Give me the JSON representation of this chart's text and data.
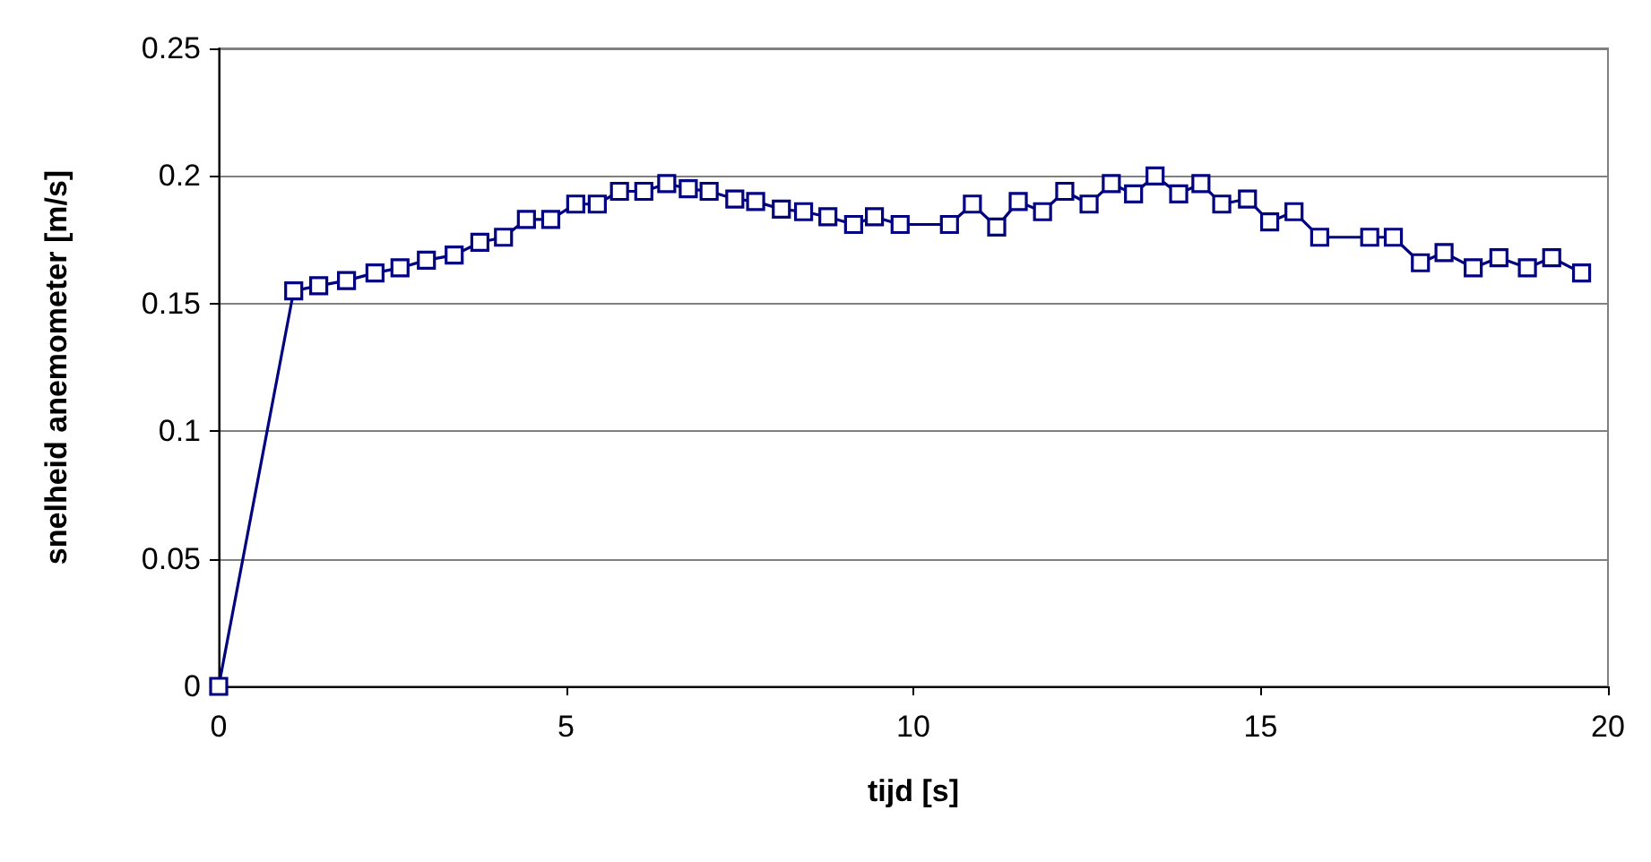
{
  "chart_data": {
    "type": "line",
    "xlabel": "tijd [s]",
    "ylabel": "snelheid anemometer [m/s]",
    "x": [
      0,
      1.08,
      1.44,
      1.84,
      2.25,
      2.61,
      2.99,
      3.39,
      3.76,
      4.1,
      4.43,
      4.78,
      5.14,
      5.45,
      5.77,
      6.12,
      6.45,
      6.76,
      7.06,
      7.43,
      7.73,
      8.1,
      8.42,
      8.77,
      9.14,
      9.44,
      9.81,
      10.52,
      10.85,
      11.2,
      11.51,
      11.86,
      12.18,
      12.53,
      12.85,
      13.17,
      13.48,
      13.82,
      14.14,
      14.44,
      14.81,
      15.13,
      15.48,
      15.85,
      16.57,
      16.91,
      17.3,
      17.64,
      18.06,
      18.43,
      18.84,
      19.19,
      19.62
    ],
    "series": [
      {
        "color": "#000080",
        "values": [
          0,
          0.155,
          0.157,
          0.159,
          0.162,
          0.164,
          0.167,
          0.169,
          0.174,
          0.176,
          0.183,
          0.183,
          0.189,
          0.189,
          0.194,
          0.194,
          0.197,
          0.195,
          0.194,
          0.191,
          0.19,
          0.187,
          0.186,
          0.184,
          0.181,
          0.184,
          0.181,
          0.181,
          0.189,
          0.18,
          0.19,
          0.186,
          0.194,
          0.189,
          0.197,
          0.193,
          0.2,
          0.193,
          0.197,
          0.189,
          0.191,
          0.182,
          0.186,
          0.176,
          0.176,
          0.176,
          0.166,
          0.17,
          0.164,
          0.168,
          0.164,
          0.168,
          0.162
        ]
      }
    ],
    "xlim": [
      0,
      20
    ],
    "xticks": [
      0,
      5,
      10,
      15,
      20
    ],
    "ylim": [
      0,
      0.25
    ],
    "yticks": [
      0,
      0.05,
      0.1,
      0.15,
      0.2,
      0.25
    ],
    "grid": "y",
    "marker": "square",
    "line_style": "solid"
  }
}
